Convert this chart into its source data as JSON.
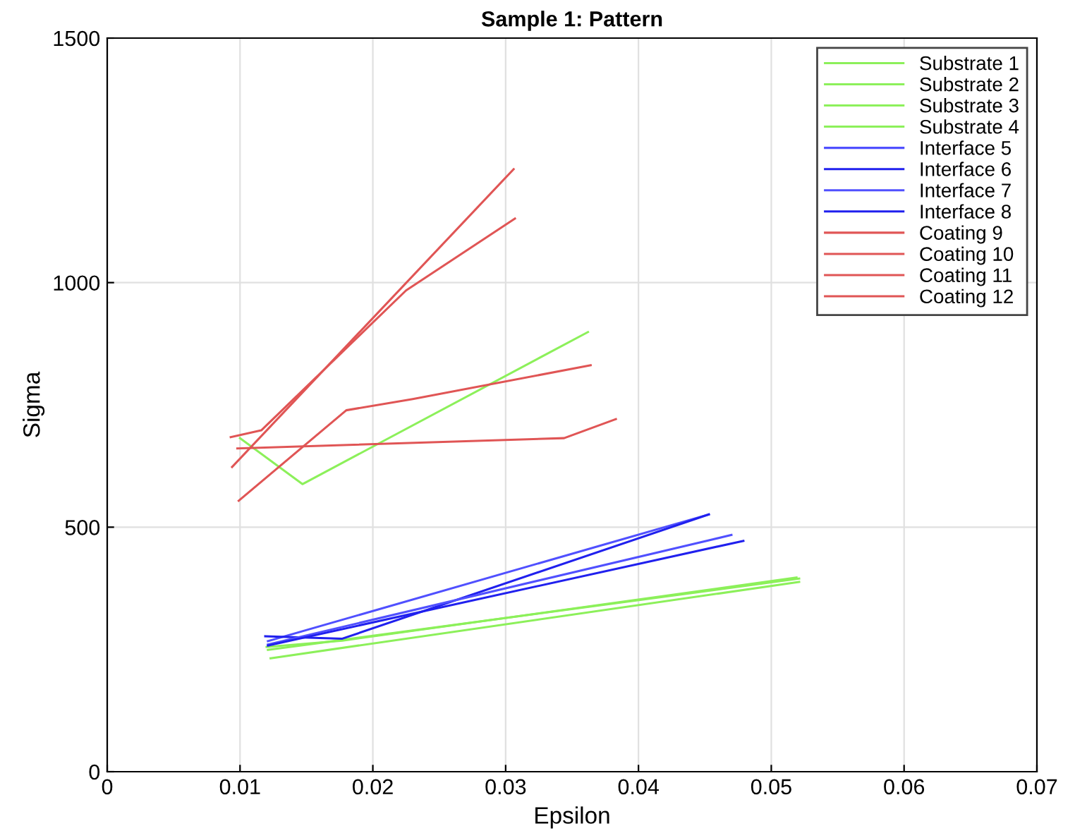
{
  "chart_data": {
    "type": "line",
    "title": "Sample 1: Pattern",
    "xlabel": "Epsilon",
    "ylabel": "Sigma",
    "xlim": [
      0,
      0.07
    ],
    "xticks": [
      0,
      0.01,
      0.02,
      0.03,
      0.04,
      0.05,
      0.06,
      0.07
    ],
    "ylim": [
      0,
      1500
    ],
    "yticks": [
      0,
      500,
      1000,
      1500
    ],
    "grid": true,
    "legend": "top right",
    "line_style": "solid",
    "marker": "none",
    "series": [
      {
        "name": "Substrate 1",
        "color": "#8cf05a",
        "x": [
          0.01,
          0.0147,
          0.0362
        ],
        "values": [
          682,
          588,
          899
        ]
      },
      {
        "name": "Substrate 2",
        "color": "#8cf05a",
        "x": [
          0.0121,
          0.0521
        ],
        "values": [
          249,
          395
        ]
      },
      {
        "name": "Substrate 3",
        "color": "#8cf05a",
        "x": [
          0.0123,
          0.0521
        ],
        "values": [
          232,
          388
        ]
      },
      {
        "name": "Substrate 4",
        "color": "#8cf05a",
        "x": [
          0.012,
          0.0177,
          0.0519
        ],
        "values": [
          255,
          268,
          397
        ]
      },
      {
        "name": "Interface 5",
        "color": "#5050ff",
        "x": [
          0.0121,
          0.0453
        ],
        "values": [
          267,
          526
        ]
      },
      {
        "name": "Interface 6",
        "color": "#2020ee",
        "x": [
          0.0119,
          0.0177,
          0.0453
        ],
        "values": [
          277,
          272,
          526
        ]
      },
      {
        "name": "Interface 7",
        "color": "#5050ff",
        "x": [
          0.0121,
          0.047
        ],
        "values": [
          260,
          484
        ]
      },
      {
        "name": "Interface 8",
        "color": "#2020ee",
        "x": [
          0.0121,
          0.0479
        ],
        "values": [
          258,
          472
        ]
      },
      {
        "name": "Coating 9",
        "color": "#e05555",
        "x": [
          0.0094,
          0.0306
        ],
        "values": [
          623,
          1232
        ]
      },
      {
        "name": "Coating 10",
        "color": "#e05555",
        "x": [
          0.0093,
          0.0116,
          0.0225,
          0.0307
        ],
        "values": [
          684,
          698,
          984,
          1131
        ]
      },
      {
        "name": "Coating 11",
        "color": "#e05555",
        "x": [
          0.0099,
          0.018,
          0.023,
          0.0364
        ],
        "values": [
          554,
          739,
          762,
          831
        ]
      },
      {
        "name": "Coating 12",
        "color": "#e05555",
        "x": [
          0.0098,
          0.0344,
          0.0383
        ],
        "values": [
          661,
          682,
          721
        ]
      }
    ]
  }
}
